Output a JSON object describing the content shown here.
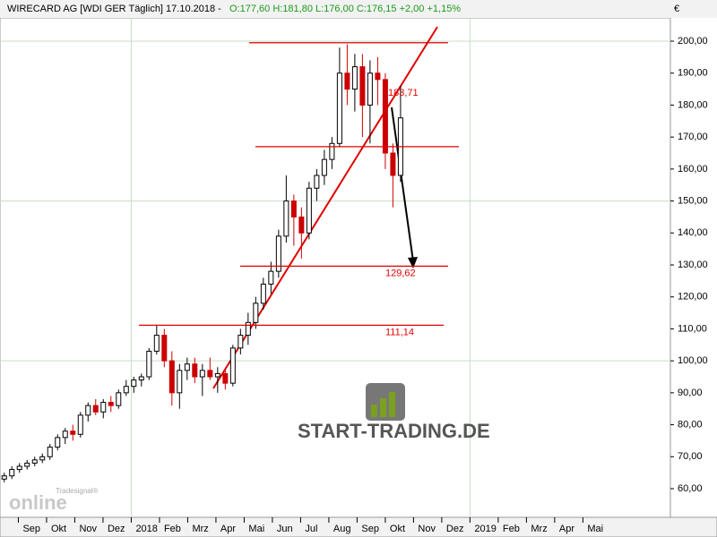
{
  "chart_data": {
    "type": "candlestick",
    "title": "WIRECARD AG [WDI GER  Täglich] 17.10.2018 -",
    "subtitle": "O:177,60 H:181,80 L:176,00 C:176,15 +2,00 +1,15%",
    "currency": "€",
    "watermark": "START-TRADING.DE",
    "logo_top": "Tradesignal®",
    "logo_bottom": "online",
    "up_color": "#000000",
    "down_color": "#cc0000",
    "level_color": "#e00000",
    "grid": true,
    "ylim": [
      51.04,
      207.28
    ],
    "yticks": [
      {
        "value": 60,
        "label": "60,00"
      },
      {
        "value": 70,
        "label": "70,00"
      },
      {
        "value": 80,
        "label": "80,00"
      },
      {
        "value": 90,
        "label": "90,00"
      },
      {
        "value": 100,
        "label": "100,00"
      },
      {
        "value": 110,
        "label": "110,00"
      },
      {
        "value": 120,
        "label": "120,00"
      },
      {
        "value": 130,
        "label": "130,00"
      },
      {
        "value": 140,
        "label": "140,00"
      },
      {
        "value": 150,
        "label": "150,00"
      },
      {
        "value": 160,
        "label": "160,00"
      },
      {
        "value": 170,
        "label": "170,00"
      },
      {
        "value": 180,
        "label": "180,00"
      },
      {
        "value": 190,
        "label": "190,00"
      },
      {
        "value": 200,
        "label": "200,00"
      }
    ],
    "grid_values": [
      50,
      100,
      150,
      200
    ],
    "xlim": [
      0.35,
      24.1
    ],
    "xticks": [
      {
        "value": 1,
        "label": "Sep"
      },
      {
        "value": 2,
        "label": "Okt"
      },
      {
        "value": 3,
        "label": "Nov"
      },
      {
        "value": 4,
        "label": "Dez"
      },
      {
        "value": 5,
        "label": "2018"
      },
      {
        "value": 6,
        "label": "Feb"
      },
      {
        "value": 7,
        "label": "Mrz"
      },
      {
        "value": 8,
        "label": "Apr"
      },
      {
        "value": 9,
        "label": "Mai"
      },
      {
        "value": 10,
        "label": "Jun"
      },
      {
        "value": 11,
        "label": "Jul"
      },
      {
        "value": 12,
        "label": "Aug"
      },
      {
        "value": 13,
        "label": "Sep"
      },
      {
        "value": 14,
        "label": "Okt"
      },
      {
        "value": 15,
        "label": "Nov"
      },
      {
        "value": 16,
        "label": "Dez"
      },
      {
        "value": 17,
        "label": "2019"
      },
      {
        "value": 18,
        "label": "Feb"
      },
      {
        "value": 19,
        "label": "Mrz"
      },
      {
        "value": 20,
        "label": "Apr"
      },
      {
        "value": 21,
        "label": "Mai"
      }
    ],
    "year_lines": [
      5,
      17
    ],
    "x": [
      0.5,
      0.77,
      1.04,
      1.31,
      1.58,
      1.85,
      2.12,
      2.39,
      2.66,
      2.93,
      3.2,
      3.47,
      3.74,
      4.01,
      4.28,
      4.55,
      4.82,
      5.09,
      5.36,
      5.63,
      5.9,
      6.17,
      6.44,
      6.71,
      6.98,
      7.25,
      7.52,
      7.79,
      8.06,
      8.33,
      8.6,
      8.87,
      9.14,
      9.41,
      9.68,
      9.95,
      10.22,
      10.49,
      10.76,
      11.03,
      11.3,
      11.57,
      11.84,
      12.11,
      12.38,
      12.65,
      12.92,
      13.19,
      13.46,
      13.73,
      14.0,
      14.27,
      14.54
    ],
    "open": [
      63,
      64,
      66,
      67,
      68,
      69,
      70,
      73,
      76,
      78,
      77,
      83,
      86,
      84,
      87,
      86,
      90,
      92,
      94,
      95,
      103,
      108,
      100,
      90,
      97,
      99,
      95,
      97,
      95,
      96,
      93,
      104,
      108,
      112,
      118,
      124,
      128,
      139,
      150,
      145,
      140,
      154,
      158,
      163,
      168,
      190,
      185,
      192,
      180,
      190,
      188,
      165,
      158
    ],
    "high": [
      65,
      67,
      68,
      69,
      70,
      71,
      74,
      77,
      79,
      80,
      84,
      87,
      88,
      88,
      89,
      91,
      94,
      95,
      96,
      104,
      111,
      110,
      103,
      99,
      101,
      101,
      99,
      101,
      98,
      97,
      105,
      110,
      115,
      120,
      126,
      131,
      141,
      158,
      152,
      148,
      156,
      160,
      166,
      170,
      198,
      199,
      196,
      196,
      194,
      195,
      190,
      168,
      186
    ],
    "low": [
      62,
      63,
      65,
      66,
      67,
      68,
      69,
      72,
      74,
      75,
      76,
      81,
      83,
      82,
      84,
      85,
      89,
      90,
      92,
      94,
      102,
      98,
      86,
      85,
      94,
      93,
      89,
      94,
      90,
      91,
      92,
      102,
      105,
      110,
      116,
      121,
      126,
      137,
      136,
      132,
      138,
      150,
      155,
      160,
      167,
      180,
      178,
      170,
      168,
      180,
      160,
      148,
      156
    ],
    "close": [
      64,
      66,
      67,
      68,
      69,
      70,
      73,
      76,
      78,
      77,
      83,
      86,
      84,
      87,
      86,
      90,
      92,
      94,
      95,
      103,
      108,
      100,
      90,
      97,
      99,
      95,
      97,
      95,
      96,
      93,
      104,
      108,
      112,
      118,
      124,
      128,
      139,
      150,
      145,
      140,
      154,
      158,
      163,
      168,
      190,
      185,
      192,
      180,
      190,
      188,
      165,
      158,
      176
    ],
    "hlines": [
      199.5,
      167,
      {
        "value": 129.62,
        "label": "129,62"
      },
      {
        "value": 111.14,
        "label": "111,14"
      }
    ],
    "annotations": [
      {
        "value": 183.71,
        "label": "183,71"
      }
    ]
  }
}
